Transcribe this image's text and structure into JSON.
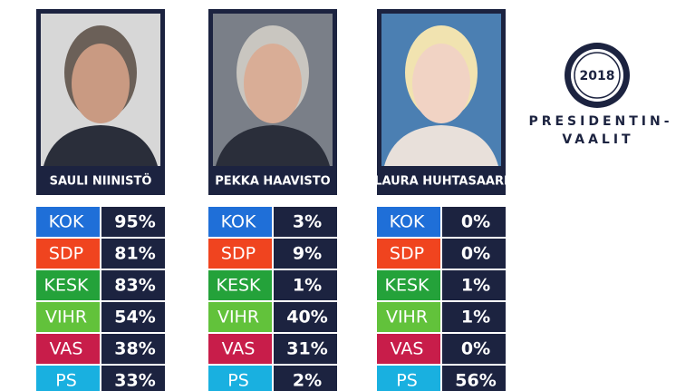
{
  "parties": [
    {
      "name": "KOK",
      "color": "#1f6fd8"
    },
    {
      "name": "SDP",
      "color": "#f0441f"
    },
    {
      "name": "KESK",
      "color": "#24a23a"
    },
    {
      "name": "VIHR",
      "color": "#62c23b"
    },
    {
      "name": "VAS",
      "color": "#c81d4a"
    },
    {
      "name": "PS",
      "color": "#19b0e0"
    }
  ],
  "candidates": [
    {
      "name": "SAULI NIINISTÖ",
      "results": [
        "95%",
        "81%",
        "83%",
        "54%",
        "38%",
        "33%"
      ]
    },
    {
      "name": "PEKKA HAAVISTO",
      "results": [
        "3%",
        "9%",
        "1%",
        "40%",
        "31%",
        "2%"
      ]
    },
    {
      "name": "LAURA HUHTASAARI",
      "results": [
        "0%",
        "0%",
        "1%",
        "1%",
        "0%",
        "56%"
      ]
    }
  ],
  "logo": {
    "year": "2018",
    "line1": "PRESIDENTIN-",
    "line2": "VAALIT"
  }
}
